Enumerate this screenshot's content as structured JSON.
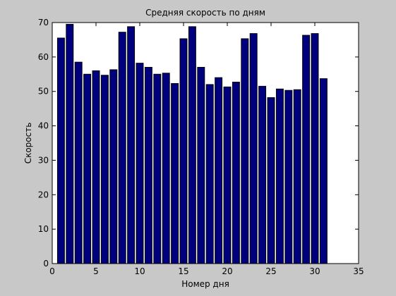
{
  "chart_data": {
    "type": "bar",
    "title": "Средняя скорость по дням",
    "xlabel": "Номер дня",
    "ylabel": "Скорость",
    "xlim": [
      0,
      35
    ],
    "ylim": [
      0,
      70
    ],
    "xticks": [
      0,
      5,
      10,
      15,
      20,
      25,
      30,
      35
    ],
    "yticks": [
      0,
      10,
      20,
      30,
      40,
      50,
      60,
      70
    ],
    "grid": false,
    "legend": "none",
    "bar_color": "#00007f",
    "x": [
      1,
      2,
      3,
      4,
      5,
      6,
      7,
      8,
      9,
      10,
      11,
      12,
      13,
      14,
      15,
      16,
      17,
      18,
      19,
      20,
      21,
      22,
      23,
      24,
      25,
      26,
      27,
      28,
      29,
      30,
      31
    ],
    "values": [
      65.5,
      69.5,
      58.5,
      55,
      56,
      54.7,
      56.3,
      67.2,
      68.8,
      58.2,
      57,
      55,
      55.3,
      52.3,
      65.3,
      68.8,
      57,
      52,
      54,
      51.3,
      52.7,
      65.3,
      66.8,
      51.5,
      48.2,
      50.7,
      50.3,
      50.5,
      66.3,
      66.8,
      53.7
    ]
  },
  "colors": {
    "figure_background": "#c8c8c8",
    "axes_background": "#ffffff",
    "bar_edge": "#000000"
  }
}
